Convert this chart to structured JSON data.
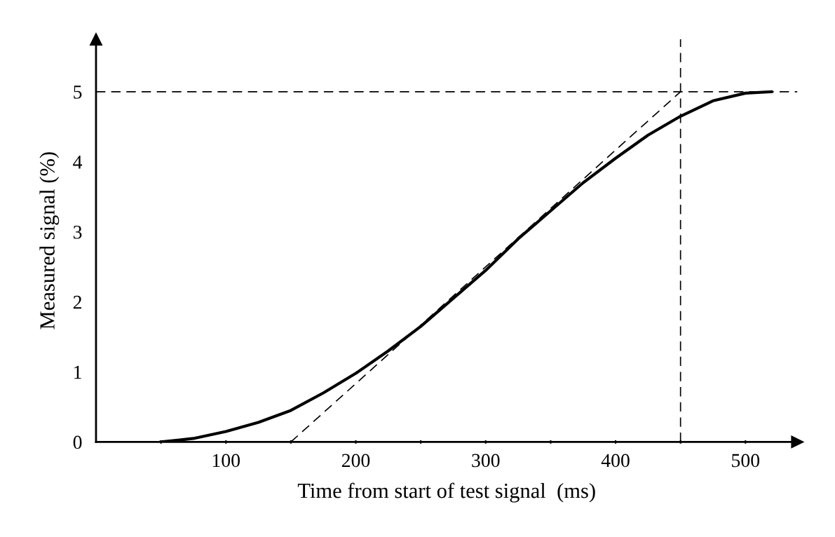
{
  "chart_data": {
    "type": "line",
    "xlabel": "Time from start of test signal  (ms)",
    "ylabel": "Measured signal (%)",
    "xlim": [
      0,
      540
    ],
    "ylim": [
      0,
      5.75
    ],
    "xticks": [
      {
        "value": 50,
        "label": null
      },
      100,
      {
        "value": 150,
        "label": null
      },
      200,
      {
        "value": 250,
        "label": null
      },
      300,
      {
        "value": 350,
        "label": null
      },
      400,
      {
        "value": 450,
        "label": null
      },
      500
    ],
    "yticks": [
      0,
      1,
      2,
      3,
      4,
      5
    ],
    "series": [
      {
        "color": "#000000",
        "line_style": "solid",
        "x": [
          50,
          75,
          100,
          125,
          150,
          175,
          200,
          225,
          250,
          275,
          300,
          325,
          350,
          375,
          400,
          425,
          450,
          475,
          500,
          520
        ],
        "values": [
          0,
          0.05,
          0.15,
          0.28,
          0.45,
          0.7,
          0.98,
          1.3,
          1.65,
          2.05,
          2.45,
          2.9,
          3.3,
          3.7,
          4.05,
          4.38,
          4.65,
          4.87,
          4.98,
          5.0
        ]
      },
      {
        "color": "#000000",
        "line_style": "dashed",
        "x": [
          150,
          450
        ],
        "values": [
          0,
          5
        ]
      }
    ],
    "ref_lines": [
      {
        "axis": "y",
        "value": 5,
        "line_style": "dashed",
        "color": "#000000"
      },
      {
        "axis": "x",
        "value": 450,
        "line_style": "dashed",
        "color": "#000000"
      }
    ],
    "grid": false,
    "legend": false,
    "marker": "none"
  }
}
